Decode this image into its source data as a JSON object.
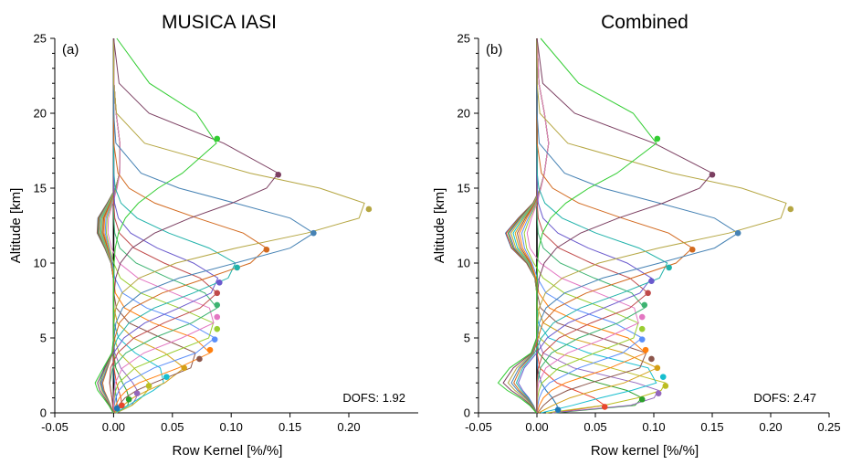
{
  "colors": [
    "#1f77b4",
    "#e8462c",
    "#2ca02c",
    "#9467bd",
    "#bcbd22",
    "#17becf",
    "#d4a017",
    "#8c564b",
    "#ff7f0e",
    "#5b8ff9",
    "#9acd32",
    "#e377c2",
    "#3cb371",
    "#c04a4a",
    "#6a5acd",
    "#20b2aa",
    "#d2691e",
    "#4682b4",
    "#b5a642",
    "#7b3f61",
    "#32cd32",
    "#00ced1",
    "#a0522d",
    "#808000",
    "#ff6f61",
    "#3d85c6",
    "#8fbc8f"
  ],
  "chart_data": [
    {
      "type": "line",
      "title": "MUSICA IASI",
      "panel_label": "(a)",
      "xlabel": "Row Kernel [%/%]",
      "ylabel": "Altitude [km]",
      "xlim": [
        -0.05,
        0.22
      ],
      "ylim": [
        0,
        25
      ],
      "xticks": [
        "-0.05",
        "0.00",
        "0.05",
        "0.10",
        "0.15",
        "0.20"
      ],
      "xtick_values": [
        -0.05,
        0.0,
        0.05,
        0.1,
        0.15,
        0.2
      ],
      "yticks": [
        "0",
        "5",
        "10",
        "15",
        "20",
        "25"
      ],
      "ytick_values": [
        0,
        5,
        10,
        15,
        20,
        25
      ],
      "annotation": "DOFS: 1.92",
      "altitude": [
        0,
        0.5,
        1,
        1.5,
        2,
        3,
        4,
        5,
        6,
        7,
        8,
        9,
        10,
        11,
        12,
        13,
        14,
        15,
        16,
        18,
        20,
        22,
        25
      ],
      "peaks": [
        {
          "z": 0.3,
          "v": 0.003
        },
        {
          "z": 0.5,
          "v": 0.007
        },
        {
          "z": 0.9,
          "v": 0.013
        },
        {
          "z": 1.3,
          "v": 0.02
        },
        {
          "z": 1.8,
          "v": 0.03
        },
        {
          "z": 2.4,
          "v": 0.045
        },
        {
          "z": 3.0,
          "v": 0.06
        },
        {
          "z": 3.6,
          "v": 0.073
        },
        {
          "z": 4.2,
          "v": 0.082
        },
        {
          "z": 4.9,
          "v": 0.086
        },
        {
          "z": 5.6,
          "v": 0.088
        },
        {
          "z": 6.4,
          "v": 0.088
        },
        {
          "z": 7.2,
          "v": 0.088
        },
        {
          "z": 8.0,
          "v": 0.088
        },
        {
          "z": 8.7,
          "v": 0.09
        },
        {
          "z": 9.7,
          "v": 0.105
        },
        {
          "z": 10.9,
          "v": 0.13
        },
        {
          "z": 12.0,
          "v": 0.17
        },
        {
          "z": 13.6,
          "v": 0.217
        },
        {
          "z": 15.9,
          "v": 0.14
        },
        {
          "z": 18.3,
          "v": 0.088
        }
      ]
    },
    {
      "type": "line",
      "title": "Combined",
      "panel_label": "(b)",
      "xlabel": "Row kernel [%/%]",
      "ylabel": "Altitude [km]",
      "xlim": [
        -0.05,
        0.25
      ],
      "ylim": [
        0,
        25
      ],
      "xticks": [
        "-0.05",
        "0.00",
        "0.05",
        "0.10",
        "0.15",
        "0.20",
        "0.25"
      ],
      "xtick_values": [
        -0.05,
        0.0,
        0.05,
        0.1,
        0.15,
        0.2,
        0.25
      ],
      "yticks": [
        "0",
        "5",
        "10",
        "15",
        "20",
        "25"
      ],
      "ytick_values": [
        0,
        5,
        10,
        15,
        20,
        25
      ],
      "annotation": "DOFS: 2.47",
      "altitude": [
        0,
        0.5,
        1,
        1.5,
        2,
        3,
        4,
        5,
        6,
        7,
        8,
        9,
        10,
        11,
        12,
        13,
        14,
        15,
        16,
        18,
        20,
        22,
        25
      ],
      "peaks": [
        {
          "z": 0.2,
          "v": 0.018
        },
        {
          "z": 0.4,
          "v": 0.058
        },
        {
          "z": 0.9,
          "v": 0.09
        },
        {
          "z": 1.3,
          "v": 0.104
        },
        {
          "z": 1.8,
          "v": 0.11
        },
        {
          "z": 2.4,
          "v": 0.108
        },
        {
          "z": 3.0,
          "v": 0.103
        },
        {
          "z": 3.6,
          "v": 0.098
        },
        {
          "z": 4.2,
          "v": 0.093
        },
        {
          "z": 4.9,
          "v": 0.09
        },
        {
          "z": 5.6,
          "v": 0.09
        },
        {
          "z": 6.4,
          "v": 0.09
        },
        {
          "z": 7.2,
          "v": 0.092
        },
        {
          "z": 8.0,
          "v": 0.095
        },
        {
          "z": 8.8,
          "v": 0.098
        },
        {
          "z": 9.7,
          "v": 0.113
        },
        {
          "z": 10.9,
          "v": 0.133
        },
        {
          "z": 12.0,
          "v": 0.172
        },
        {
          "z": 13.6,
          "v": 0.217
        },
        {
          "z": 15.9,
          "v": 0.15
        },
        {
          "z": 18.3,
          "v": 0.103
        }
      ]
    }
  ]
}
